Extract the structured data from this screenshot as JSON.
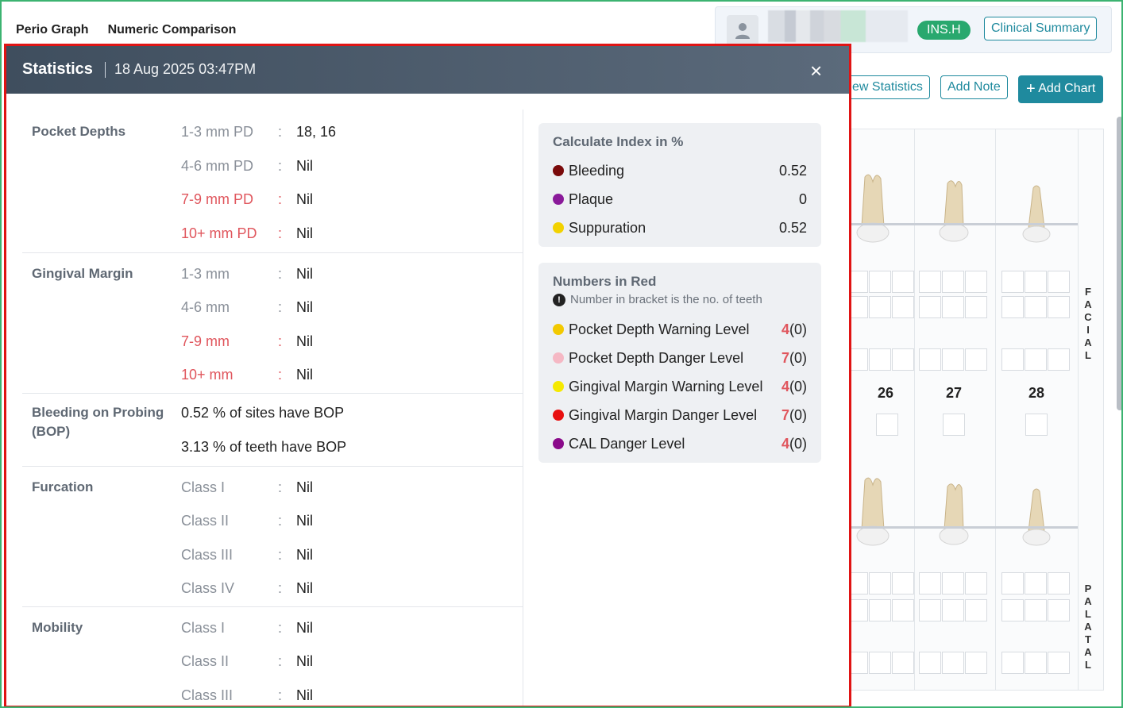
{
  "top_tabs": [
    "Perio Graph",
    "Numeric Comparison"
  ],
  "patient_bar": {
    "insurance_badge": "INS.H",
    "clinical_summary_label": "Clinical Summary"
  },
  "toolbar": {
    "view_statistics_label": "ew Statistics",
    "add_note_label": "Add Note",
    "add_chart_label": "Add Chart"
  },
  "chart": {
    "tooth_numbers": [
      "26",
      "27",
      "28"
    ],
    "facial_label": "FACIAL",
    "palatal_label": "PALATAL"
  },
  "modal": {
    "title": "Statistics",
    "date": "18 Aug 2025 03:47PM",
    "close_label": "×",
    "colon": ":",
    "pocket_depths": {
      "title": "Pocket Depths",
      "rows": [
        {
          "label": "1-3 mm PD",
          "value": "18, 16"
        },
        {
          "label": "4-6 mm PD",
          "value": "Nil"
        },
        {
          "label": "7-9 mm PD",
          "value": "Nil"
        },
        {
          "label": "10+ mm PD",
          "value": "Nil"
        }
      ]
    },
    "gingival_margin": {
      "title": "Gingival Margin",
      "rows": [
        {
          "label": "1-3 mm",
          "value": "Nil"
        },
        {
          "label": "4-6 mm",
          "value": "Nil"
        },
        {
          "label": "7-9 mm",
          "value": "Nil"
        },
        {
          "label": "10+ mm",
          "value": "Nil"
        }
      ]
    },
    "bop": {
      "title": "Bleeding on Probing",
      "title2": "(BOP)",
      "line1": "0.52 % of sites have BOP",
      "line2": "3.13 % of teeth have BOP"
    },
    "furcation": {
      "title": "Furcation",
      "rows": [
        {
          "label": "Class I",
          "value": "Nil"
        },
        {
          "label": "Class II",
          "value": "Nil"
        },
        {
          "label": "Class III",
          "value": "Nil"
        },
        {
          "label": "Class IV",
          "value": "Nil"
        }
      ]
    },
    "mobility": {
      "title": "Mobility",
      "rows": [
        {
          "label": "Class I",
          "value": "Nil"
        },
        {
          "label": "Class II",
          "value": "Nil"
        },
        {
          "label": "Class III",
          "value": "Nil"
        }
      ]
    },
    "calc_index": {
      "title": "Calculate Index in %",
      "rows": [
        {
          "label": "Bleeding",
          "value": "0.52",
          "color": "#7a0a0a"
        },
        {
          "label": "Plaque",
          "value": "0",
          "color": "#8a1a9a"
        },
        {
          "label": "Suppuration",
          "value": "0.52",
          "color": "#f2d200"
        }
      ]
    },
    "numbers_in_red": {
      "title": "Numbers in Red",
      "note": "Number in bracket is the no. of teeth",
      "rows": [
        {
          "label": "Pocket Depth Warning Level",
          "num": "4",
          "count": "(0)",
          "color": "#f2c900"
        },
        {
          "label": "Pocket Depth Danger Level",
          "num": "7",
          "count": "(0)",
          "color": "#f5b8c4"
        },
        {
          "label": "Gingival Margin Warning Level",
          "num": "4",
          "count": "(0)",
          "color": "#f5e900"
        },
        {
          "label": "Gingival Margin Danger Level",
          "num": "7",
          "count": "(0)",
          "color": "#e81010"
        },
        {
          "label": "CAL Danger Level",
          "num": "4",
          "count": "(0)",
          "color": "#8a0a8a"
        }
      ]
    }
  }
}
